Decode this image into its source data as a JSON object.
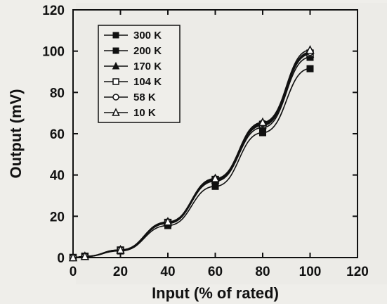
{
  "chart_data": {
    "type": "line",
    "title": "",
    "xlabel": "Input (% of rated)",
    "ylabel": "Output (mV)",
    "xlim": [
      0,
      120
    ],
    "ylim": [
      0,
      120
    ],
    "xticks": [
      0,
      20,
      40,
      60,
      80,
      100,
      120
    ],
    "yticks": [
      0,
      20,
      40,
      60,
      80,
      100,
      120
    ],
    "grid": false,
    "legend_position": "top-left",
    "x": [
      0,
      5,
      20,
      40,
      60,
      80,
      100
    ],
    "series": [
      {
        "name": "300 K",
        "marker": "filled-square",
        "values": [
          0,
          0.5,
          3.2,
          15.5,
          34.5,
          60.5,
          91.5
        ]
      },
      {
        "name": "200 K",
        "marker": "filled-square",
        "values": [
          0,
          0.5,
          3.5,
          16.5,
          37,
          63,
          97
        ]
      },
      {
        "name": "170 K",
        "marker": "filled-triangle",
        "values": [
          0,
          0.6,
          3.6,
          16.8,
          37.5,
          64,
          98.5
        ]
      },
      {
        "name": "104 K",
        "marker": "open-square",
        "values": [
          0,
          0.6,
          3.6,
          17,
          37.8,
          64.5,
          99
        ]
      },
      {
        "name": "58 K",
        "marker": "open-circle",
        "values": [
          0,
          0.6,
          3.7,
          17.2,
          38,
          65,
          99.5
        ]
      },
      {
        "name": "10 K",
        "marker": "open-triangle",
        "values": [
          0,
          0.6,
          3.7,
          17.3,
          38.3,
          65.5,
          100.5
        ]
      }
    ]
  }
}
